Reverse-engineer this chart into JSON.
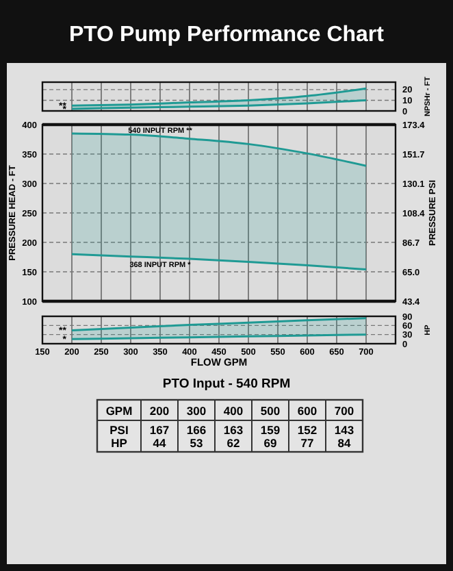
{
  "chart_data": [
    {
      "type": "line",
      "title": "PTO Pump Performance Chart",
      "x": [
        200,
        300,
        400,
        500,
        600,
        700
      ],
      "xlim": [
        150,
        750
      ],
      "xticks": [
        150,
        200,
        250,
        300,
        350,
        400,
        450,
        500,
        550,
        600,
        650,
        700
      ],
      "y2lim": [
        0,
        27
      ],
      "y2ticks": [
        0,
        10,
        20
      ],
      "y2label": "NPSHr - FT",
      "grid": true,
      "tick_labels": "y",
      "series": [
        {
          "name": "**",
          "color": "#1f9a94",
          "axis": "y2",
          "values": [
            5,
            6,
            8,
            10,
            14,
            21
          ],
          "lower": [
            2,
            3,
            4,
            5,
            7,
            10
          ],
          "upper": [
            5,
            6,
            8,
            10,
            14,
            21
          ]
        },
        {
          "name": "*",
          "color": "#1f9a94",
          "axis": "y2",
          "values": [
            2,
            3,
            4,
            5,
            7,
            10
          ]
        }
      ]
    },
    {
      "type": "line",
      "x": [
        200,
        300,
        400,
        500,
        600,
        700
      ],
      "xlim": [
        150,
        750
      ],
      "xticks": [
        150,
        200,
        250,
        300,
        350,
        400,
        450,
        500,
        550,
        600,
        650,
        700
      ],
      "ylim": [
        100,
        400
      ],
      "yticks": [
        100,
        150,
        200,
        250,
        300,
        350,
        400
      ],
      "ylabel": "PRESSURE HEAD - FT",
      "y2lim": [
        43.4,
        173.4
      ],
      "y2ticks": [
        43.4,
        {
          "value": 65,
          "label": "65.0"
        },
        86.7,
        108.4,
        130.1,
        151.7,
        173.4
      ],
      "y2label": "PRESSURE PSI",
      "grid": true,
      "tick_labels": "y",
      "series": [
        {
          "name": "540 INPUT RPM **",
          "color": "#1f9a94",
          "values": [
            385,
            383,
            376,
            367,
            351,
            330
          ],
          "lower": [
            180,
            176,
            172,
            167,
            161,
            154
          ],
          "upper": [
            385,
            383,
            376,
            367,
            351,
            330
          ]
        },
        {
          "name": "368 INPUT RPM *",
          "color": "#1f9a94",
          "values": [
            180,
            176,
            172,
            167,
            161,
            154
          ]
        }
      ]
    },
    {
      "type": "line",
      "x": [
        200,
        300,
        400,
        500,
        600,
        700
      ],
      "xlim": [
        150,
        750
      ],
      "xticks": [
        150,
        200,
        250,
        300,
        350,
        400,
        450,
        500,
        550,
        600,
        650,
        700
      ],
      "xlabel": "FLOW GPM",
      "y2lim": [
        0,
        90
      ],
      "y2ticks": [
        0,
        30,
        60,
        90
      ],
      "y2label": "HP",
      "grid": true,
      "series": [
        {
          "name": "**",
          "color": "#1f9a94",
          "axis": "y2",
          "values": [
            44,
            53,
            62,
            69,
            77,
            84
          ],
          "lower": [
            15,
            18,
            21,
            24,
            27,
            30
          ],
          "upper": [
            44,
            53,
            62,
            69,
            77,
            84
          ]
        },
        {
          "name": "*",
          "color": "#1f9a94",
          "axis": "y2",
          "values": [
            15,
            18,
            21,
            24,
            27,
            30
          ]
        }
      ]
    },
    {
      "type": "heatmap",
      "title": "PTO Input - 540 RPM",
      "xlabel": "GPM",
      "categories": [
        "200",
        "300",
        "400",
        "500",
        "600",
        "700"
      ],
      "y_categories": [
        "PSI",
        "HP"
      ],
      "data_labels": true,
      "cells": [
        [
          167,
          166,
          163,
          159,
          152,
          143
        ],
        [
          44,
          53,
          62,
          69,
          77,
          84
        ]
      ]
    }
  ]
}
